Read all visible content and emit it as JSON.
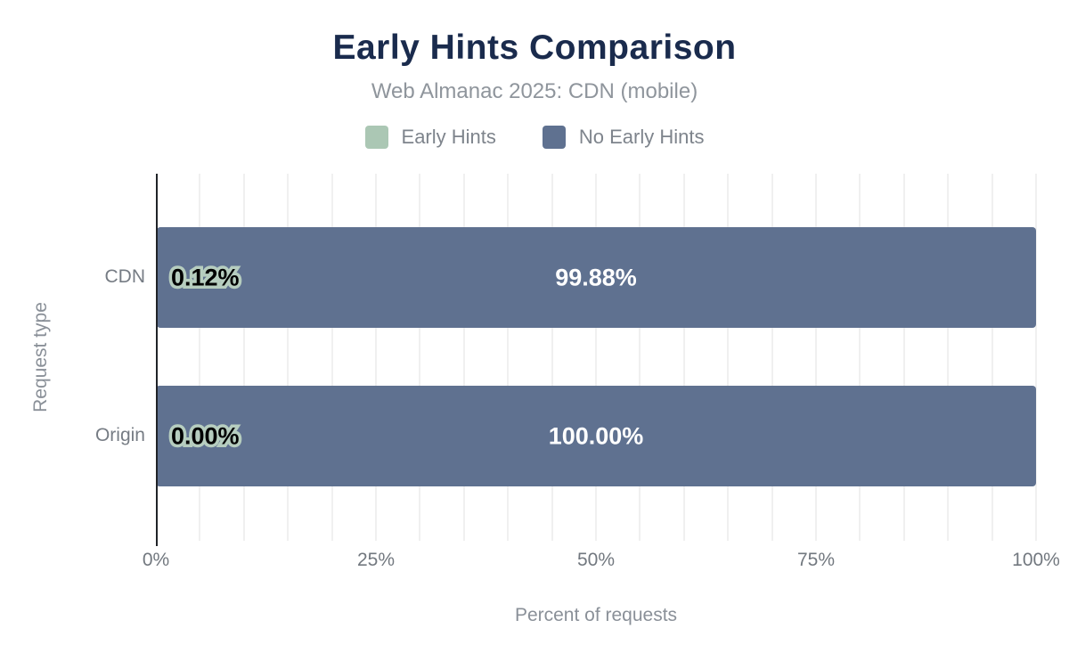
{
  "title": "Early Hints Comparison",
  "subtitle": "Web Almanac 2025: CDN (mobile)",
  "legend": {
    "items": [
      {
        "label": "Early Hints",
        "color": "#abc7b4"
      },
      {
        "label": "No Early Hints",
        "color": "#5f7190"
      }
    ]
  },
  "colors": {
    "title": "#1a2b4d",
    "early_hints": "#abc7b4",
    "no_early_hints": "#5f7190",
    "label_outline": "#b6cdbf",
    "axis_line": "#202328"
  },
  "chart_data": {
    "type": "bar",
    "orientation": "horizontal",
    "stacked": true,
    "title": "Early Hints Comparison",
    "subtitle": "Web Almanac 2025: CDN (mobile)",
    "categories": [
      "CDN",
      "Origin"
    ],
    "series": [
      {
        "name": "Early Hints",
        "color": "#abc7b4",
        "values": [
          0.12,
          0.0
        ],
        "labels": [
          "0.12%",
          "0.00%"
        ]
      },
      {
        "name": "No Early Hints",
        "color": "#5f7190",
        "values": [
          99.88,
          100.0
        ],
        "labels": [
          "99.88%",
          "100.00%"
        ]
      }
    ],
    "xlabel": "Percent of requests",
    "ylabel": "Request type",
    "xlim": [
      0,
      100
    ],
    "x_ticks": [
      "0%",
      "25%",
      "50%",
      "75%",
      "100%"
    ],
    "grid": {
      "axis": "x",
      "interval_pct": 5
    },
    "legend_position": "top"
  }
}
